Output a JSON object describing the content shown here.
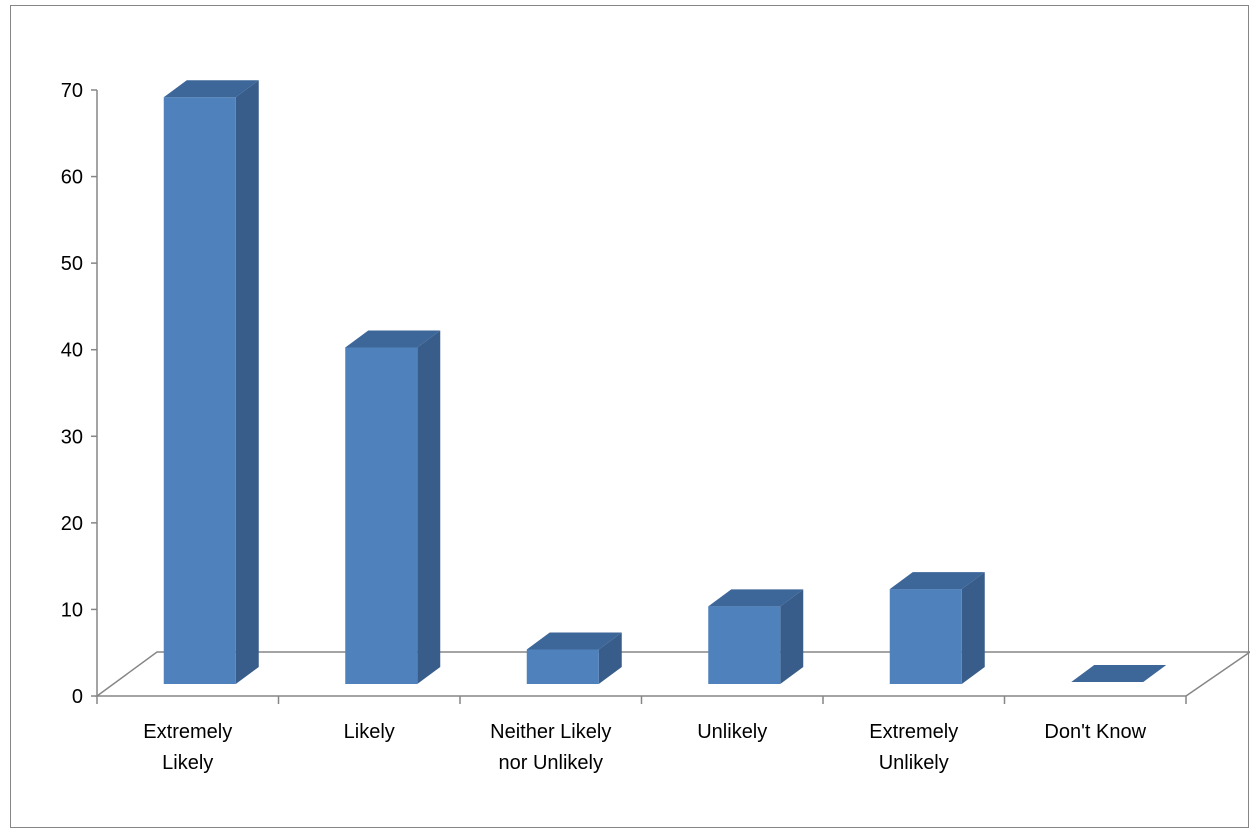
{
  "chart_data": {
    "type": "bar",
    "style": "3d-column",
    "categories": [
      [
        "Extremely",
        "Likely"
      ],
      [
        "Likely"
      ],
      [
        "Neither Likely",
        "nor Unlikely"
      ],
      [
        "Unlikely"
      ],
      [
        "Extremely",
        "Unlikely"
      ],
      [
        "Don't Know"
      ]
    ],
    "values": [
      68,
      39,
      4,
      9,
      11,
      0
    ],
    "title": "",
    "xlabel": "",
    "ylabel": "",
    "ylim": [
      0,
      70
    ],
    "yticks": [
      0,
      10,
      20,
      30,
      40,
      50,
      60,
      70
    ],
    "grid": false,
    "legend": "none",
    "colors": {
      "bar_front": "#4f81bd",
      "bar_side": "#385d8a",
      "bar_top": "#3d6699",
      "axis": "#868686",
      "frame": "#868686"
    }
  }
}
